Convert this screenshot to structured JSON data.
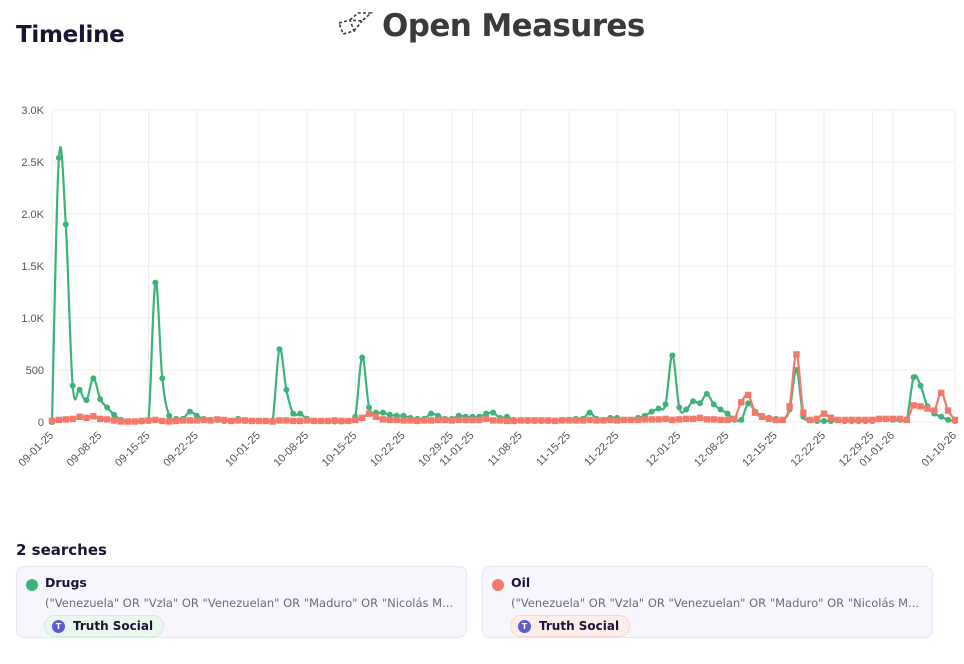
{
  "header": {
    "page_title": "Timeline",
    "brand_name": "Open Measures",
    "brand_icon": "open-measures-logo-icon"
  },
  "searches": {
    "count_label": "2 searches",
    "items": [
      {
        "name": "Drugs",
        "color": "#3db37a",
        "query": "(\"Venezuela\" OR \"Vzla\" OR \"Venezuelan\" OR \"Maduro\" OR \"Nicolás M...",
        "platform": "Truth Social",
        "platform_icon": "truth-social-icon",
        "chip_bg": "#eaf7ef",
        "chip_border": "#cdeedb"
      },
      {
        "name": "Oil",
        "color": "#f27a6b",
        "query": "(\"Venezuela\" OR \"Vzla\" OR \"Venezuelan\" OR \"Maduro\" OR \"Nicolás M...",
        "platform": "Truth Social",
        "platform_icon": "truth-social-icon",
        "chip_bg": "#fdeeec",
        "chip_border": "#f8d5d0"
      }
    ]
  },
  "chart_data": {
    "type": "line",
    "title": "Timeline",
    "xlabel": "",
    "ylabel": "",
    "ylim": [
      0,
      3000
    ],
    "yticks": [
      0,
      500,
      1000,
      1500,
      2000,
      2500,
      3000
    ],
    "ytick_labels": [
      "0",
      "500",
      "1.0K",
      "1.5K",
      "2.0K",
      "2.5K",
      "3.0K"
    ],
    "x_start": "09-01-25",
    "x_end": "01-10-26",
    "x_interval": "daily",
    "xtick_labels": [
      {
        "label": "09-01-25",
        "day": 0
      },
      {
        "label": "09-08-25",
        "day": 7
      },
      {
        "label": "09-15-25",
        "day": 14
      },
      {
        "label": "09-22-25",
        "day": 21
      },
      {
        "label": "10-01-25",
        "day": 30
      },
      {
        "label": "10-08-25",
        "day": 37
      },
      {
        "label": "10-15-25",
        "day": 44
      },
      {
        "label": "10-22-25",
        "day": 51
      },
      {
        "label": "10-29-25",
        "day": 58
      },
      {
        "label": "11-01-25",
        "day": 61
      },
      {
        "label": "11-08-25",
        "day": 68
      },
      {
        "label": "11-15-25",
        "day": 75
      },
      {
        "label": "11-22-25",
        "day": 82
      },
      {
        "label": "12-01-25",
        "day": 91
      },
      {
        "label": "12-08-25",
        "day": 98
      },
      {
        "label": "12-15-25",
        "day": 105
      },
      {
        "label": "12-22-25",
        "day": 112
      },
      {
        "label": "12-29-25",
        "day": 119
      },
      {
        "label": "01-01-26",
        "day": 122
      },
      {
        "label": "01-10-26",
        "day": 131
      }
    ],
    "grid": true,
    "legend_position": "below (search cards)",
    "series": [
      {
        "name": "Drugs",
        "color": "#3db37a",
        "marker": "circle",
        "values": [
          0,
          2540,
          1900,
          350,
          310,
          210,
          420,
          220,
          140,
          70,
          20,
          5,
          5,
          5,
          10,
          1340,
          420,
          60,
          30,
          30,
          100,
          60,
          30,
          20,
          20,
          10,
          10,
          30,
          10,
          10,
          10,
          10,
          15,
          700,
          310,
          80,
          80,
          30,
          10,
          10,
          10,
          5,
          5,
          10,
          50,
          620,
          140,
          90,
          90,
          70,
          60,
          60,
          40,
          30,
          30,
          80,
          60,
          30,
          30,
          60,
          50,
          50,
          50,
          80,
          90,
          40,
          50,
          20,
          15,
          10,
          10,
          10,
          10,
          15,
          20,
          20,
          30,
          30,
          90,
          30,
          20,
          40,
          40,
          20,
          20,
          40,
          60,
          100,
          130,
          170,
          640,
          140,
          120,
          200,
          180,
          270,
          170,
          120,
          80,
          20,
          20,
          180,
          100,
          60,
          40,
          30,
          20,
          120,
          500,
          50,
          20,
          10,
          10,
          10,
          20,
          10,
          10,
          10,
          10,
          10,
          30,
          30,
          20,
          20,
          20,
          430,
          350,
          150,
          80,
          50,
          20,
          10
        ]
      },
      {
        "name": "Oil",
        "color": "#f27a6b",
        "marker": "square",
        "values": [
          10,
          20,
          25,
          30,
          50,
          40,
          55,
          30,
          25,
          15,
          5,
          5,
          5,
          10,
          15,
          20,
          10,
          5,
          10,
          15,
          15,
          15,
          20,
          15,
          25,
          20,
          10,
          15,
          15,
          10,
          10,
          10,
          5,
          15,
          15,
          10,
          10,
          15,
          10,
          10,
          10,
          15,
          10,
          10,
          20,
          40,
          80,
          50,
          25,
          20,
          20,
          15,
          15,
          10,
          15,
          15,
          20,
          20,
          15,
          20,
          20,
          20,
          20,
          30,
          15,
          15,
          10,
          10,
          15,
          15,
          15,
          15,
          15,
          10,
          15,
          15,
          15,
          15,
          20,
          15,
          15,
          20,
          15,
          20,
          20,
          20,
          25,
          25,
          25,
          30,
          20,
          25,
          30,
          30,
          40,
          25,
          25,
          20,
          20,
          30,
          190,
          260,
          90,
          50,
          30,
          20,
          20,
          150,
          650,
          90,
          20,
          30,
          80,
          40,
          20,
          20,
          20,
          20,
          20,
          20,
          30,
          30,
          30,
          30,
          20,
          160,
          150,
          130,
          110,
          280,
          110,
          20
        ]
      }
    ]
  }
}
